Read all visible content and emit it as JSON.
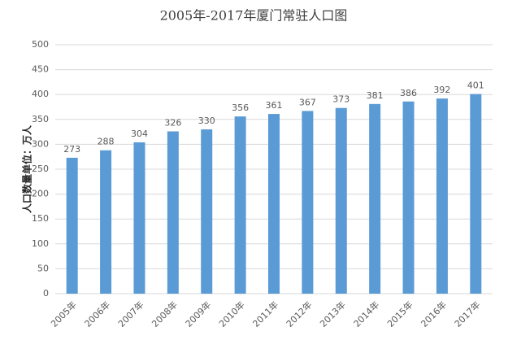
{
  "chart_data": {
    "type": "bar",
    "title": "2005年-2017年厦门常驻人口图",
    "y_label": "人口数量单位：万人",
    "categories": [
      "2005年",
      "2006年",
      "2007年",
      "2008年",
      "2009年",
      "2010年",
      "2011年",
      "2012年",
      "2013年",
      "2014年",
      "2015年",
      "2016年",
      "2017年"
    ],
    "values": [
      273,
      288,
      304,
      326,
      330,
      356,
      361,
      367,
      373,
      381,
      386,
      392,
      401
    ],
    "color": "#5b9bd5",
    "ylim": [
      0,
      500
    ],
    "yticks": [
      0,
      50,
      100,
      150,
      200,
      250,
      300,
      350,
      400,
      450,
      500
    ],
    "grid": true
  }
}
